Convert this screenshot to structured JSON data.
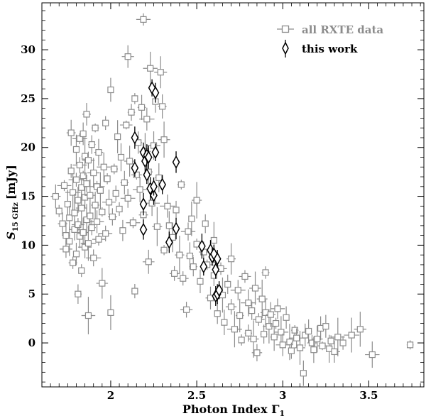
{
  "chart_data": {
    "type": "scatter",
    "xlabel": "Photon Index Γ",
    "xlabel_subscript": "1",
    "ylabel": "S",
    "ylabel_subscript": "15 GHz",
    "ylabel_unit": "[mJy]",
    "xlim": [
      1.6,
      3.82
    ],
    "ylim": [
      -4.5,
      34.8
    ],
    "x_ticks": [
      2,
      2.5,
      3,
      3.5
    ],
    "x_tick_labels": [
      "2",
      "2.5",
      "3",
      "3.5"
    ],
    "y_ticks": [
      0,
      5,
      10,
      15,
      20,
      25,
      30
    ],
    "y_tick_labels": [
      "0",
      "5",
      "10",
      "15",
      "20",
      "25",
      "30"
    ],
    "grid": false,
    "legend_position": "top-right",
    "colors": {
      "rxte": "#8c8c8c",
      "this_work": "#000000"
    },
    "series": [
      {
        "name": "all RXTE data",
        "marker": "square",
        "points": [
          [
            1.68,
            15.0
          ],
          [
            1.7,
            13.5
          ],
          [
            1.72,
            12.2
          ],
          [
            1.73,
            16.1
          ],
          [
            1.74,
            11.0
          ],
          [
            1.74,
            9.6
          ],
          [
            1.75,
            14.2
          ],
          [
            1.76,
            12.8
          ],
          [
            1.76,
            10.4
          ],
          [
            1.77,
            21.5
          ],
          [
            1.77,
            17.6
          ],
          [
            1.78,
            15.4
          ],
          [
            1.78,
            8.2
          ],
          [
            1.79,
            13.3
          ],
          [
            1.79,
            11.6
          ],
          [
            1.8,
            19.8
          ],
          [
            1.8,
            16.7
          ],
          [
            1.8,
            9.1
          ],
          [
            1.81,
            14.6
          ],
          [
            1.81,
            12.1
          ],
          [
            1.81,
            5.0
          ],
          [
            1.82,
            20.9
          ],
          [
            1.82,
            18.2
          ],
          [
            1.82,
            10.9
          ],
          [
            1.83,
            15.9
          ],
          [
            1.83,
            13.8
          ],
          [
            1.83,
            7.4
          ],
          [
            1.84,
            21.4
          ],
          [
            1.84,
            17.1
          ],
          [
            1.84,
            11.3
          ],
          [
            1.85,
            19.1
          ],
          [
            1.85,
            14.9
          ],
          [
            1.85,
            9.8
          ],
          [
            1.86,
            23.4
          ],
          [
            1.86,
            16.3
          ],
          [
            1.86,
            12.6
          ],
          [
            1.87,
            18.7
          ],
          [
            1.87,
            10.2
          ],
          [
            1.87,
            2.8
          ],
          [
            1.88,
            15.1
          ],
          [
            1.88,
            13.0
          ],
          [
            1.89,
            20.3
          ],
          [
            1.89,
            11.8
          ],
          [
            1.9,
            17.4
          ],
          [
            1.9,
            8.7
          ],
          [
            1.91,
            22.0
          ],
          [
            1.91,
            14.1
          ],
          [
            1.92,
            16.0
          ],
          [
            1.92,
            12.4
          ],
          [
            1.93,
            19.5
          ],
          [
            1.93,
            10.6
          ],
          [
            1.94,
            15.6
          ],
          [
            1.95,
            13.4
          ],
          [
            1.95,
            6.1
          ],
          [
            1.96,
            18.0
          ],
          [
            1.97,
            11.2
          ],
          [
            1.97,
            22.5
          ],
          [
            1.98,
            16.8
          ],
          [
            1.99,
            14.4
          ],
          [
            2.0,
            3.1
          ],
          [
            2.0,
            25.9
          ],
          [
            2.01,
            12.9
          ],
          [
            2.02,
            17.8
          ],
          [
            2.03,
            15.3
          ],
          [
            2.04,
            21.1
          ],
          [
            2.05,
            13.7
          ],
          [
            2.06,
            19.0
          ],
          [
            2.07,
            11.5
          ],
          [
            2.08,
            16.4
          ],
          [
            2.09,
            22.3
          ],
          [
            2.1,
            29.3
          ],
          [
            2.1,
            14.8
          ],
          [
            2.11,
            18.6
          ],
          [
            2.12,
            23.6
          ],
          [
            2.13,
            12.3
          ],
          [
            2.14,
            25.0
          ],
          [
            2.14,
            5.3
          ],
          [
            2.15,
            17.2
          ],
          [
            2.16,
            20.5
          ],
          [
            2.17,
            15.7
          ],
          [
            2.18,
            24.1
          ],
          [
            2.19,
            33.1
          ],
          [
            2.19,
            13.1
          ],
          [
            2.2,
            19.6
          ],
          [
            2.21,
            22.9
          ],
          [
            2.22,
            17.5
          ],
          [
            2.22,
            8.3
          ],
          [
            2.23,
            28.1
          ],
          [
            2.24,
            14.3
          ],
          [
            2.25,
            20.2
          ],
          [
            2.26,
            24.7
          ],
          [
            2.27,
            11.9
          ],
          [
            2.28,
            16.9
          ],
          [
            2.29,
            27.7
          ],
          [
            2.3,
            24.2
          ],
          [
            2.31,
            20.8
          ],
          [
            2.31,
            9.5
          ],
          [
            2.33,
            14.0
          ],
          [
            2.34,
            12.0
          ],
          [
            2.36,
            10.8
          ],
          [
            2.37,
            7.1
          ],
          [
            2.38,
            13.6
          ],
          [
            2.4,
            9.0
          ],
          [
            2.41,
            16.2
          ],
          [
            2.42,
            6.6
          ],
          [
            2.44,
            3.4
          ],
          [
            2.45,
            11.4
          ],
          [
            2.46,
            8.9
          ],
          [
            2.47,
            12.7
          ],
          [
            2.48,
            7.8
          ],
          [
            2.5,
            14.6
          ],
          [
            2.5,
            10.1
          ],
          [
            2.52,
            6.3
          ],
          [
            2.54,
            9.3
          ],
          [
            2.55,
            12.2
          ],
          [
            2.56,
            8.0
          ],
          [
            2.58,
            4.6
          ],
          [
            2.6,
            10.5
          ],
          [
            2.6,
            6.9
          ],
          [
            2.62,
            3.0
          ],
          [
            2.64,
            7.6
          ],
          [
            2.65,
            4.9
          ],
          [
            2.66,
            2.1
          ],
          [
            2.68,
            6.0
          ],
          [
            2.7,
            8.6
          ],
          [
            2.7,
            3.7
          ],
          [
            2.72,
            1.4
          ],
          [
            2.74,
            5.4
          ],
          [
            2.75,
            2.8
          ],
          [
            2.76,
            0.3
          ],
          [
            2.78,
            6.8
          ],
          [
            2.8,
            4.1
          ],
          [
            2.8,
            1.0
          ],
          [
            2.82,
            3.3
          ],
          [
            2.83,
            0.4
          ],
          [
            2.84,
            5.6
          ],
          [
            2.85,
            -1.0
          ],
          [
            2.86,
            2.4
          ],
          [
            2.88,
            4.5
          ],
          [
            2.89,
            0.9
          ],
          [
            2.9,
            3.1
          ],
          [
            2.9,
            7.2
          ],
          [
            2.92,
            1.7
          ],
          [
            2.93,
            2.9
          ],
          [
            2.95,
            0.6
          ],
          [
            2.96,
            2.0
          ],
          [
            2.97,
            3.5
          ],
          [
            2.99,
            1.1
          ],
          [
            3.0,
            -0.2
          ],
          [
            3.02,
            2.6
          ],
          [
            3.04,
            0.1
          ],
          [
            3.05,
            -0.8
          ],
          [
            3.07,
            1.3
          ],
          [
            3.08,
            0.5
          ],
          [
            3.1,
            -0.5
          ],
          [
            3.12,
            -3.1
          ],
          [
            3.13,
            0.8
          ],
          [
            3.15,
            1.2
          ],
          [
            3.17,
            0.0
          ],
          [
            3.18,
            -0.7
          ],
          [
            3.2,
            0.4
          ],
          [
            3.22,
            1.5
          ],
          [
            3.23,
            -0.3
          ],
          [
            3.25,
            1.7
          ],
          [
            3.27,
            -0.6
          ],
          [
            3.28,
            0.2
          ],
          [
            3.3,
            -0.9
          ],
          [
            3.32,
            0.6
          ],
          [
            3.35,
            0.0
          ],
          [
            3.4,
            0.8
          ],
          [
            3.45,
            1.4
          ],
          [
            3.52,
            -1.2
          ],
          [
            3.74,
            -0.2
          ]
        ]
      },
      {
        "name": "this work",
        "marker": "diamond",
        "points": [
          [
            2.14,
            21.0
          ],
          [
            2.14,
            17.9
          ],
          [
            2.19,
            14.2
          ],
          [
            2.19,
            11.6
          ],
          [
            2.19,
            19.5
          ],
          [
            2.2,
            18.6
          ],
          [
            2.21,
            19.2
          ],
          [
            2.21,
            17.2
          ],
          [
            2.22,
            19.0
          ],
          [
            2.23,
            15.8
          ],
          [
            2.24,
            26.1
          ],
          [
            2.25,
            15.1
          ],
          [
            2.25,
            16.0
          ],
          [
            2.26,
            25.6
          ],
          [
            2.26,
            19.5
          ],
          [
            2.3,
            16.2
          ],
          [
            2.34,
            10.3
          ],
          [
            2.38,
            18.5
          ],
          [
            2.38,
            11.7
          ],
          [
            2.53,
            9.9
          ],
          [
            2.54,
            7.8
          ],
          [
            2.58,
            9.5
          ],
          [
            2.59,
            8.8
          ],
          [
            2.6,
            9.1
          ],
          [
            2.61,
            7.5
          ],
          [
            2.61,
            4.8
          ],
          [
            2.62,
            8.6
          ],
          [
            2.62,
            5.0
          ],
          [
            2.63,
            5.4
          ]
        ]
      }
    ]
  }
}
